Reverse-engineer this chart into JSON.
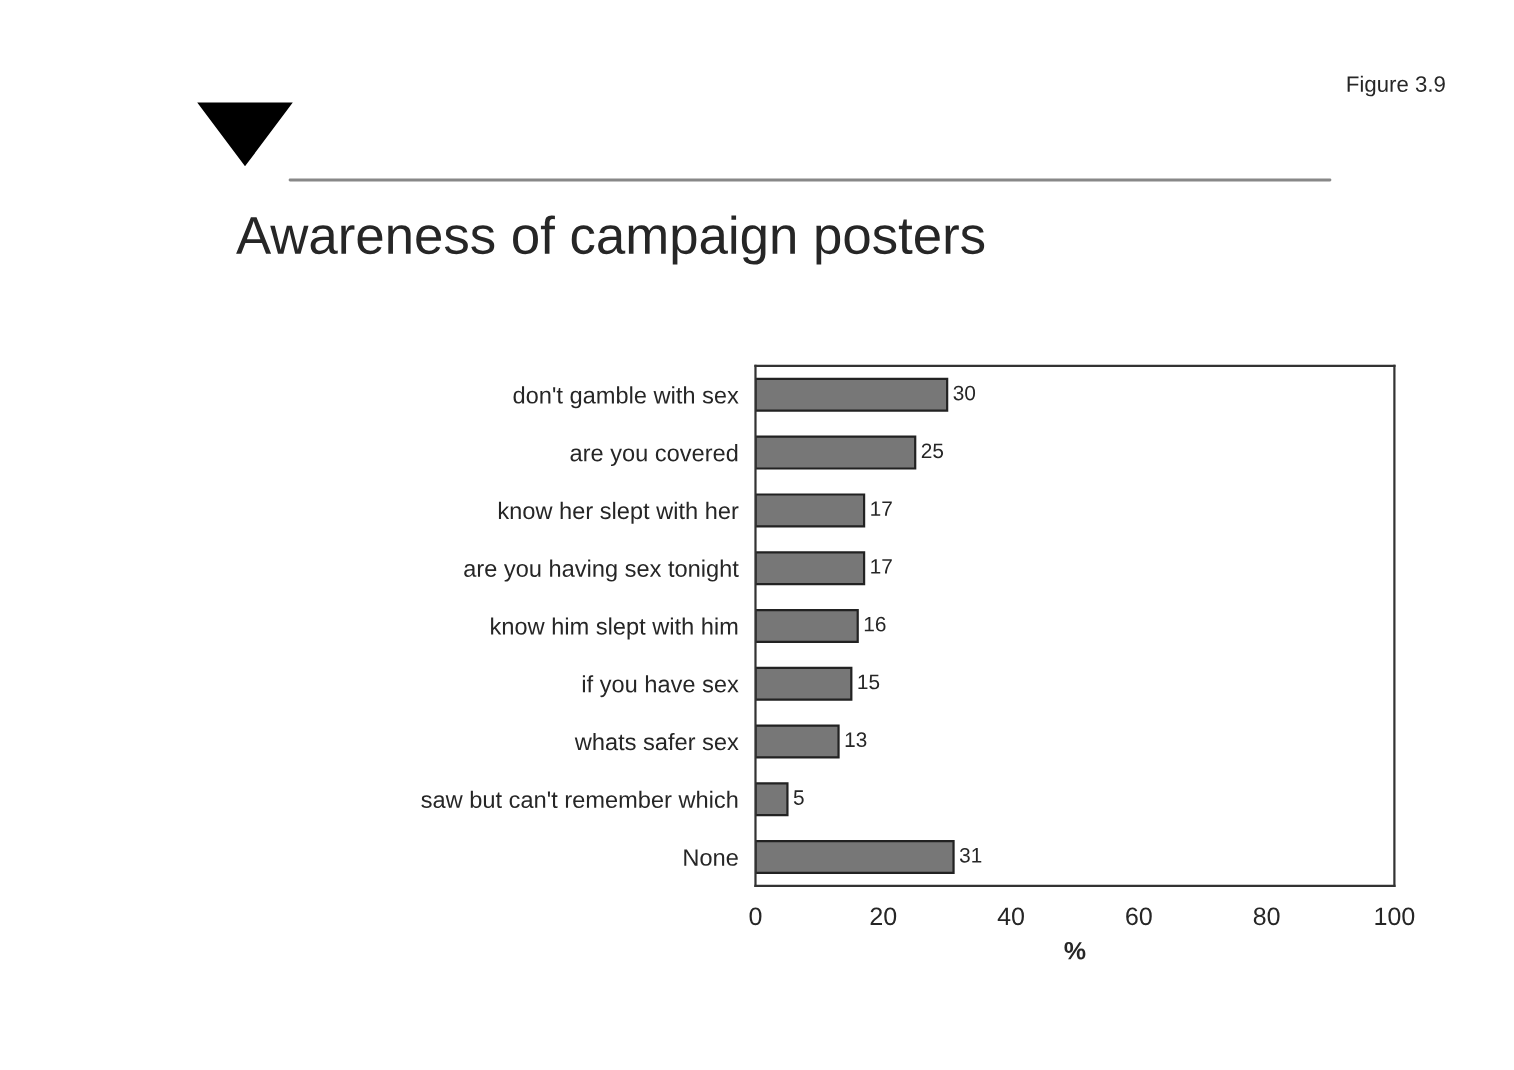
{
  "chart_data": {
    "type": "bar",
    "orientation": "horizontal",
    "title": "Awareness of campaign posters",
    "xlabel": "%",
    "annotations": [
      "Figure 3.9"
    ],
    "categories": [
      "don't gamble with sex",
      "are you covered",
      "know her slept with her",
      "are you having sex tonight",
      "know him slept with him",
      "if you have sex",
      "whats safer sex",
      "saw but can't remember which",
      "None"
    ],
    "values": [
      30,
      25,
      17,
      17,
      16,
      15,
      13,
      5,
      31
    ],
    "color": "#777777",
    "xlim": [
      0,
      100
    ],
    "xticks": [
      0,
      20,
      40,
      60,
      80,
      100
    ],
    "data_labels": true,
    "grid": false
  }
}
